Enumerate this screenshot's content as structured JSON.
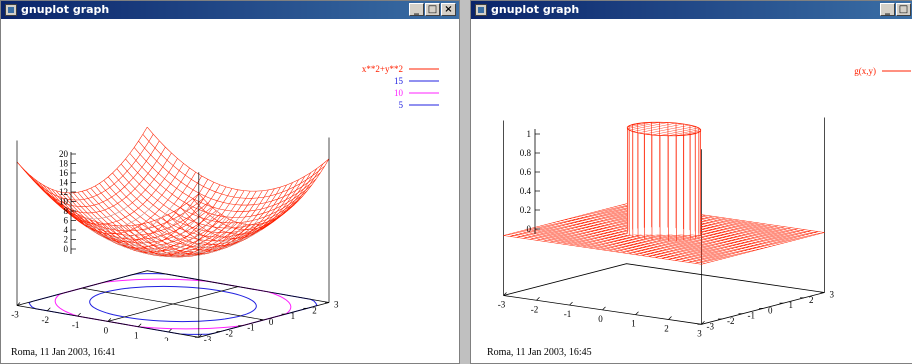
{
  "windows": [
    {
      "title": "gnuplot graph",
      "controls": {
        "minimize": "_",
        "maximize": "□",
        "close": "×"
      },
      "legend": [
        {
          "label": "x**2+y**2",
          "color": "#ff2000"
        },
        {
          "label": "15",
          "color": "#2020e0"
        },
        {
          "label": "10",
          "color": "#ff20ff"
        },
        {
          "label": "5",
          "color": "#2020e0"
        }
      ],
      "z_ticks": [
        "20",
        "18",
        "16",
        "14",
        "12",
        "10",
        "8",
        "6",
        "4",
        "2",
        "0"
      ],
      "x_ticks": [
        "-3",
        "-2",
        "-1",
        "0",
        "1",
        "2",
        "3"
      ],
      "y_ticks": [
        "-3",
        "-2",
        "-1",
        "0",
        "1",
        "2",
        "3"
      ],
      "timestamp": "Roma, 11 Jan 2003,   16:41"
    },
    {
      "title": "gnuplot graph",
      "controls": {
        "minimize": "_",
        "maximize": "□"
      },
      "legend": [
        {
          "label": "g(x,y)",
          "color": "#ff2000"
        }
      ],
      "z_ticks": [
        "1",
        "0.8",
        "0.6",
        "0.4",
        "0.2",
        "0"
      ],
      "x_ticks": [
        "-3",
        "-2",
        "-1",
        "0",
        "1",
        "2",
        "3"
      ],
      "y_ticks": [
        "-3",
        "-2",
        "-1",
        "0",
        "1",
        "2",
        "3"
      ],
      "timestamp": "Roma, 11 Jan 2003,   16:45"
    }
  ],
  "chart_data": [
    {
      "type": "surface",
      "function": "x**2+y**2",
      "x_range": [
        -3,
        3
      ],
      "y_range": [
        -3,
        3
      ],
      "zlim": [
        0,
        20
      ],
      "contour_levels": [
        15,
        10,
        5
      ],
      "series": [
        {
          "name": "x**2+y**2",
          "color": "#ff2000"
        },
        {
          "name": "15",
          "color": "#2020e0"
        },
        {
          "name": "10",
          "color": "#ff20ff"
        },
        {
          "name": "5",
          "color": "#2020e0"
        }
      ],
      "legend_position": "top-right"
    },
    {
      "type": "surface",
      "function": "g(x,y)",
      "x_range": [
        -3,
        3
      ],
      "y_range": [
        -3,
        3
      ],
      "zlim": [
        0,
        1
      ],
      "series": [
        {
          "name": "g(x,y)",
          "color": "#ff2000"
        }
      ],
      "legend_position": "top-right"
    }
  ]
}
